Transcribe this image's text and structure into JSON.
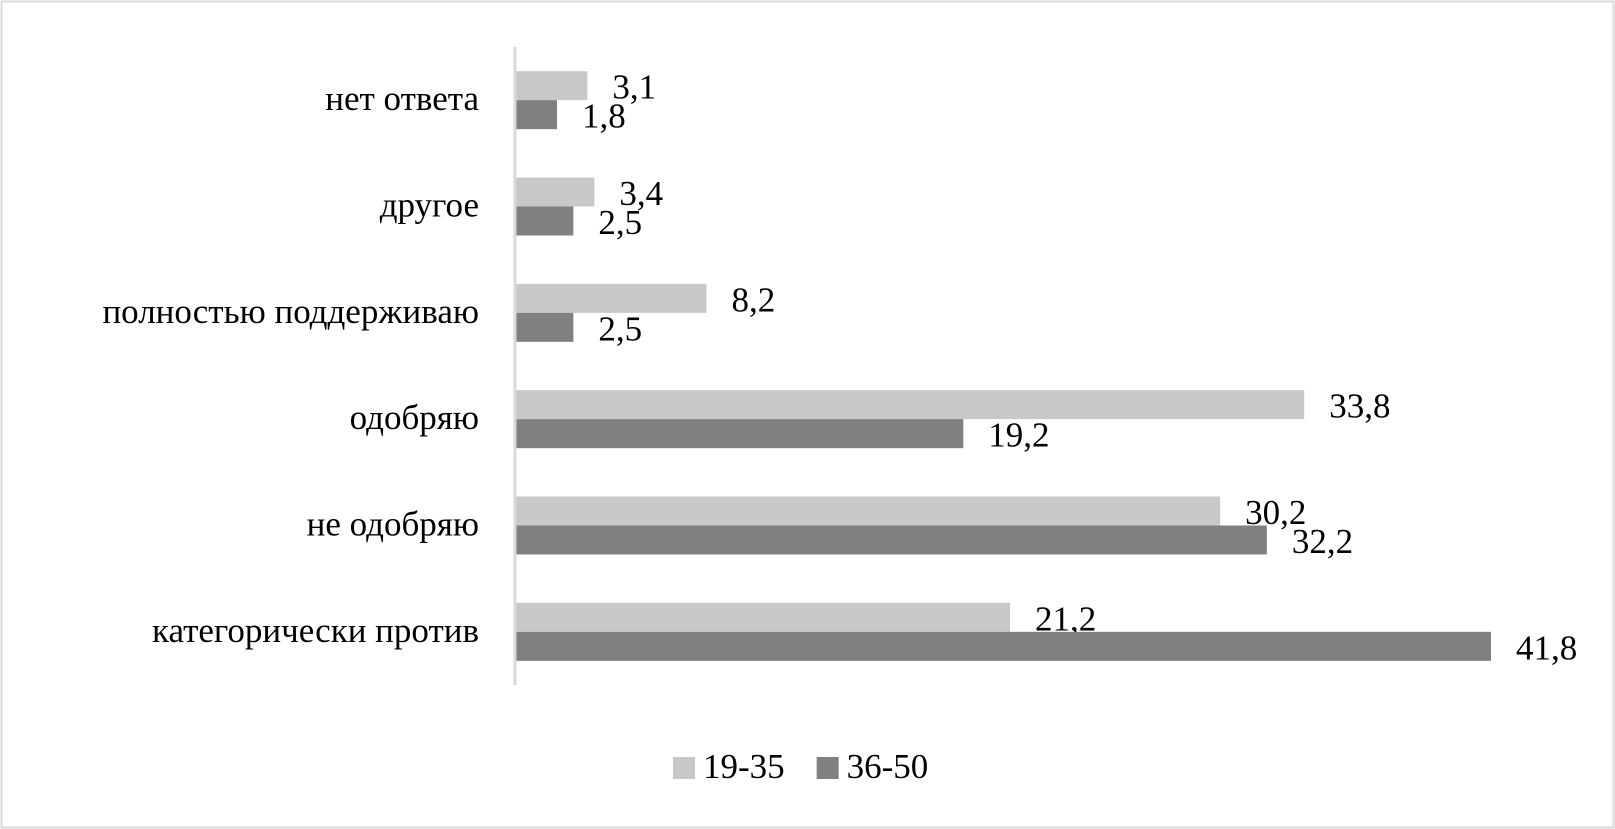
{
  "chart_data": {
    "type": "bar",
    "orientation": "horizontal",
    "categories": [
      "нет ответа",
      "другое",
      "полностью поддерживаю",
      "одобряю",
      "не одобряю",
      "категорически против"
    ],
    "series": [
      {
        "name": "19-35",
        "color": "#c8c8c8",
        "values": [
          3.1,
          3.4,
          8.2,
          33.8,
          30.2,
          21.2
        ],
        "value_labels": [
          "3,1",
          "3,4",
          "8,2",
          "33,8",
          "30,2",
          "21,2"
        ]
      },
      {
        "name": "36-50",
        "color": "#808080",
        "values": [
          1.8,
          2.5,
          2.5,
          19.2,
          32.2,
          41.8
        ],
        "value_labels": [
          "1,8",
          "2,5",
          "2,5",
          "19,2",
          "32,2",
          "41,8"
        ]
      }
    ],
    "legend": "bottom"
  }
}
